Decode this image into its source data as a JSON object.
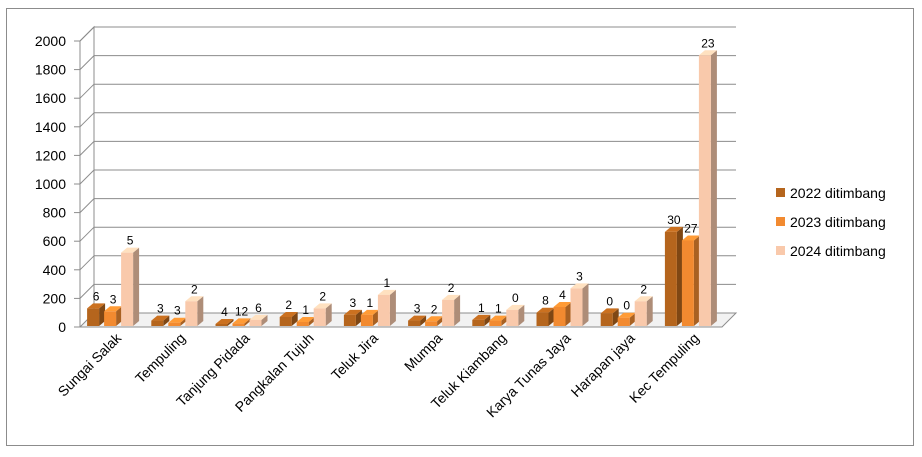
{
  "chart_data": {
    "type": "bar",
    "categories": [
      "Sungai Salak",
      "Tempuling",
      "Tanjung Pidada",
      "Pangkalan Tujuh",
      "Teluk Jira",
      "Mumpa",
      "Teluk Kiambang",
      "Karya Tunas Jaya",
      "Harapan jaya",
      "Kec Tempuling"
    ],
    "series": [
      {
        "name": "2022 ditimbang",
        "color": "#b5651d",
        "values": [
          130,
          45,
          15,
          70,
          85,
          45,
          50,
          100,
          95,
          665
        ],
        "labels": [
          "6",
          "3",
          "4",
          "2",
          "3",
          "3",
          "1",
          "8",
          "0",
          "30"
        ]
      },
      {
        "name": "2023 ditimbang",
        "color": "#f28a30",
        "values": [
          110,
          30,
          25,
          35,
          85,
          40,
          45,
          140,
          65,
          605
        ],
        "labels": [
          "3",
          "3",
          "12",
          "1",
          "1",
          "2",
          "1",
          "4",
          "0",
          "27"
        ]
      },
      {
        "name": "2024 ditimbang",
        "color": "#f9c9ab",
        "values": [
          520,
          180,
          50,
          130,
          225,
          190,
          120,
          270,
          180,
          1900
        ],
        "labels": [
          "5",
          "2",
          "6",
          "2",
          "1",
          "2",
          "0",
          "3",
          "2",
          "23"
        ]
      }
    ],
    "yticks": [
      "0",
      "200",
      "400",
      "600",
      "800",
      "1000",
      "1200",
      "1400",
      "1600",
      "1800",
      "2000"
    ],
    "ylim": [
      0,
      2000
    ],
    "grid": true,
    "legend": "right",
    "title": "",
    "xlabel": "",
    "ylabel": ""
  }
}
